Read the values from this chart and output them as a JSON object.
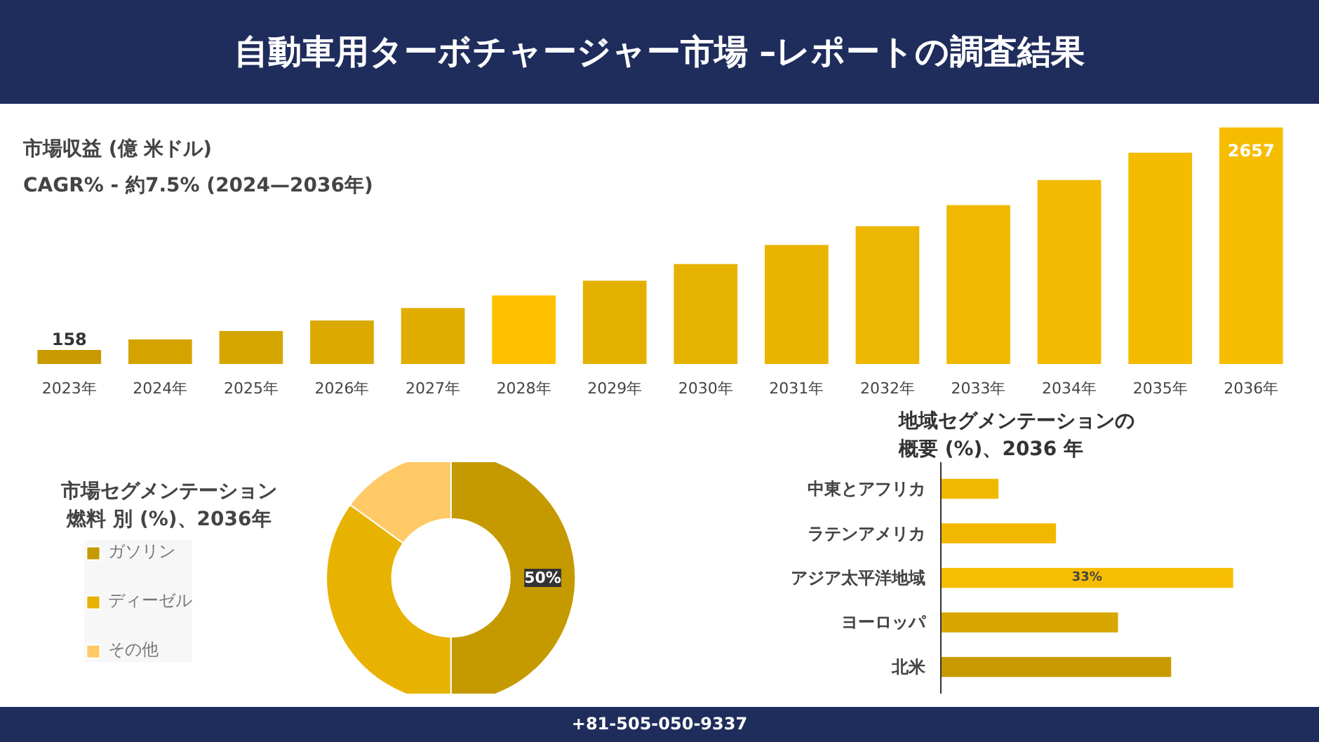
{
  "chart_data": [
    {
      "type": "bar",
      "title": "自動車用ターボチャージャー市場 –レポートの調査結果",
      "subtitle": "市場収益 (億 米ドル)",
      "annotations": [
        "CAGR% - 約7.5% (2024—2036年)"
      ],
      "categories": [
        "2023年",
        "2024年",
        "2025年",
        "2026年",
        "2027年",
        "2028年",
        "2029年",
        "2030年",
        "2031年",
        "2032年",
        "2033年",
        "2034年",
        "2035年",
        "2036年"
      ],
      "values": [
        158,
        276,
        370,
        488,
        629,
        771,
        936,
        1124,
        1337,
        1549,
        1785,
        2067,
        2374,
        2657
      ],
      "value_labels": [
        "158",
        null,
        null,
        null,
        null,
        null,
        null,
        null,
        null,
        null,
        null,
        null,
        null,
        "2657"
      ],
      "colors": [
        "#c99a00",
        "#d4a300",
        "#d6a600",
        "#dba900",
        "#e0ad00",
        "#ffc000",
        "#e3b000",
        "#e6b200",
        "#eab400",
        "#edb600",
        "#f0b800",
        "#f2ba00",
        "#f4bb00",
        "#f6bd00"
      ],
      "grid": false
    },
    {
      "type": "donut",
      "title": "市場セグメンテーション",
      "subtitle": "燃料 別 (%)、2036年",
      "categories": [
        "ガソリン",
        "ディーゼル",
        "その他"
      ],
      "values": [
        50,
        35,
        15
      ],
      "colors": [
        "#c49a00",
        "#e8b200",
        "#ffc966"
      ],
      "value_labels": [
        "50%",
        null,
        null
      ],
      "legend": "left"
    },
    {
      "type": "bar",
      "orientation": "horizontal",
      "title": "地域セグメンテーションの",
      "subtitle": "概要 (%)、2036 年",
      "categories": [
        "中東とアフリカ",
        "ラテンアメリカ",
        "アジア太平洋地域",
        "ヨーロッパ",
        "北米"
      ],
      "values": [
        6.5,
        13,
        33,
        20,
        26
      ],
      "value_labels": [
        null,
        null,
        "33%",
        null,
        null
      ],
      "colors": [
        "#f2b800",
        "#f2b800",
        "#f7bd00",
        "#d9a600",
        "#c99a00"
      ],
      "annotations": [
        "+81-505-050-9337"
      ],
      "grid": false
    }
  ]
}
